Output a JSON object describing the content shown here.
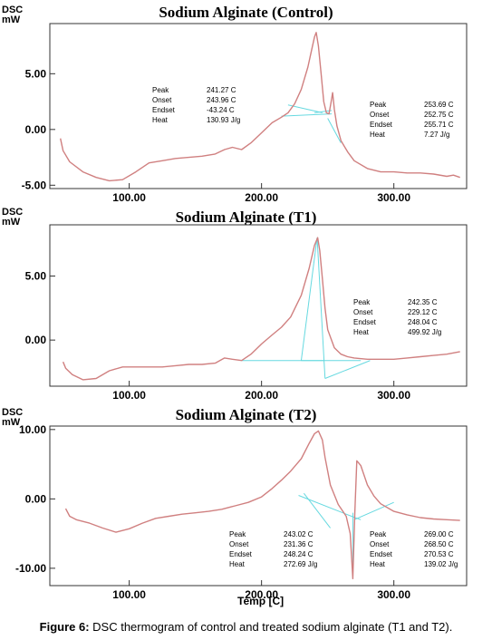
{
  "figure": {
    "caption_label": "Figure 6:",
    "caption_text": " DSC thermogram of control and treated sodium alginate (T1 and T2).",
    "x_axis_label": "Temp [C]"
  },
  "chart_data": [
    {
      "type": "line",
      "title": "Sodium Alginate (Control)",
      "ylabel": "DSC",
      "yunit": "mW",
      "xlim": [
        40,
        355
      ],
      "ylim": [
        -5.3,
        9.5
      ],
      "xticks": [
        "100.00",
        "200.00",
        "300.00"
      ],
      "xtick_values": [
        100,
        200,
        300
      ],
      "yticks": [
        "5.00",
        "0.00",
        "-5.00"
      ],
      "ytick_values": [
        5,
        0,
        -5
      ],
      "line_color": "#d08080",
      "series": [
        {
          "x": [
            48,
            50,
            55,
            65,
            75,
            85,
            95,
            105,
            115,
            125,
            135,
            145,
            155,
            165,
            172,
            178,
            185,
            192,
            200,
            208,
            215,
            220,
            225,
            230,
            235,
            238,
            240,
            241.3,
            243,
            245,
            247,
            249,
            251,
            252.5,
            253.7,
            255,
            257,
            260,
            265,
            270,
            280,
            290,
            300,
            310,
            320,
            330,
            340,
            345,
            350
          ],
          "y": [
            -0.8,
            -1.9,
            -2.9,
            -3.8,
            -4.3,
            -4.6,
            -4.5,
            -3.8,
            -3.0,
            -2.8,
            -2.6,
            -2.5,
            -2.4,
            -2.2,
            -1.8,
            -1.6,
            -1.8,
            -1.2,
            -0.3,
            0.6,
            1.1,
            1.5,
            2.3,
            3.6,
            5.6,
            7.2,
            8.3,
            8.7,
            7.5,
            5.0,
            2.5,
            1.5,
            1.4,
            2.4,
            3.3,
            1.8,
            0.3,
            -1.0,
            -2.0,
            -2.8,
            -3.5,
            -3.8,
            -3.8,
            -3.9,
            -3.9,
            -4.0,
            -4.2,
            -4.1,
            -4.3
          ]
        }
      ],
      "peaks": [
        {
          "labels": [
            "Peak",
            "Onset",
            "Endset",
            "Heat"
          ],
          "values": [
            "241.27 C",
            "243.96 C",
            "-43.24 C",
            "130.93 J/g"
          ]
        },
        {
          "labels": [
            "Peak",
            "Onset",
            "Endset",
            "Heat"
          ],
          "values": [
            "253.69 C",
            "252.75 C",
            "255.71 C",
            "7.27 J/g"
          ]
        }
      ]
    },
    {
      "type": "line",
      "title": "Sodium Alginate (T1)",
      "ylabel": "DSC",
      "yunit": "mW",
      "xlim": [
        40,
        355
      ],
      "ylim": [
        -3.6,
        9.0
      ],
      "xticks": [
        "100.00",
        "200.00",
        "300.00"
      ],
      "xtick_values": [
        100,
        200,
        300
      ],
      "yticks": [
        "5.00",
        "0.00"
      ],
      "ytick_values": [
        5,
        0
      ],
      "line_color": "#d08080",
      "series": [
        {
          "x": [
            50,
            52,
            57,
            65,
            75,
            85,
            95,
            105,
            115,
            125,
            135,
            145,
            155,
            165,
            172,
            178,
            185,
            192,
            200,
            208,
            215,
            222,
            230,
            236,
            240,
            242.4,
            244,
            246,
            248,
            250,
            255,
            260,
            265,
            270,
            280,
            290,
            300,
            310,
            320,
            330,
            340,
            350
          ],
          "y": [
            -1.7,
            -2.2,
            -2.7,
            -3.1,
            -3.0,
            -2.4,
            -2.1,
            -2.1,
            -2.1,
            -2.1,
            -2.0,
            -1.9,
            -1.9,
            -1.8,
            -1.4,
            -1.5,
            -1.6,
            -1.1,
            -0.3,
            0.4,
            1.0,
            1.8,
            3.5,
            5.6,
            7.4,
            8.0,
            7.0,
            4.8,
            2.5,
            0.8,
            -0.6,
            -1.1,
            -1.3,
            -1.4,
            -1.5,
            -1.5,
            -1.5,
            -1.4,
            -1.3,
            -1.2,
            -1.1,
            -0.9
          ]
        }
      ],
      "peaks": [
        {
          "labels": [
            "Peak",
            "Onset",
            "Endset",
            "Heat"
          ],
          "values": [
            "242.35 C",
            "229.12 C",
            "248.04 C",
            "499.92 J/g"
          ]
        }
      ]
    },
    {
      "type": "line",
      "title": "Sodium Alginate (T2)",
      "ylabel": "DSC",
      "yunit": "mW",
      "xlim": [
        40,
        355
      ],
      "ylim": [
        -12.5,
        10.5
      ],
      "xticks": [
        "100.00",
        "200.00",
        "300.00"
      ],
      "xtick_values": [
        100,
        200,
        300
      ],
      "yticks": [
        "10.00",
        "0.00",
        "-10.00"
      ],
      "ytick_values": [
        10,
        0,
        -10
      ],
      "line_color": "#d08080",
      "series": [
        {
          "x": [
            52,
            55,
            60,
            70,
            80,
            90,
            100,
            110,
            120,
            130,
            140,
            150,
            160,
            170,
            180,
            190,
            200,
            208,
            215,
            222,
            230,
            236,
            240,
            243,
            246,
            248,
            252,
            258,
            264,
            267,
            269,
            270.5,
            272,
            275,
            280,
            285,
            290,
            300,
            310,
            320,
            330,
            340,
            350
          ],
          "y": [
            -1.4,
            -2.5,
            -3.0,
            -3.5,
            -4.2,
            -4.8,
            -4.3,
            -3.5,
            -2.8,
            -2.5,
            -2.2,
            -2.0,
            -1.8,
            -1.5,
            -1.0,
            -0.5,
            0.3,
            1.5,
            2.7,
            4.0,
            5.8,
            8.0,
            9.4,
            9.8,
            8.5,
            6.0,
            2.0,
            -0.8,
            -2.5,
            -5.0,
            -11.5,
            -2.0,
            5.5,
            4.8,
            2.0,
            0.4,
            -0.7,
            -1.8,
            -2.3,
            -2.7,
            -2.9,
            -3.0,
            -3.1
          ]
        }
      ],
      "peaks": [
        {
          "labels": [
            "Peak",
            "Onset",
            "Endset",
            "Heat"
          ],
          "values": [
            "243.02 C",
            "231.36 C",
            "248.24 C",
            "272.69 J/g"
          ]
        },
        {
          "labels": [
            "Peak",
            "Onset",
            "Endset",
            "Heat"
          ],
          "values": [
            "269.00 C",
            "268.50 C",
            "270.53 C",
            "139.02 J/g"
          ]
        }
      ]
    }
  ]
}
